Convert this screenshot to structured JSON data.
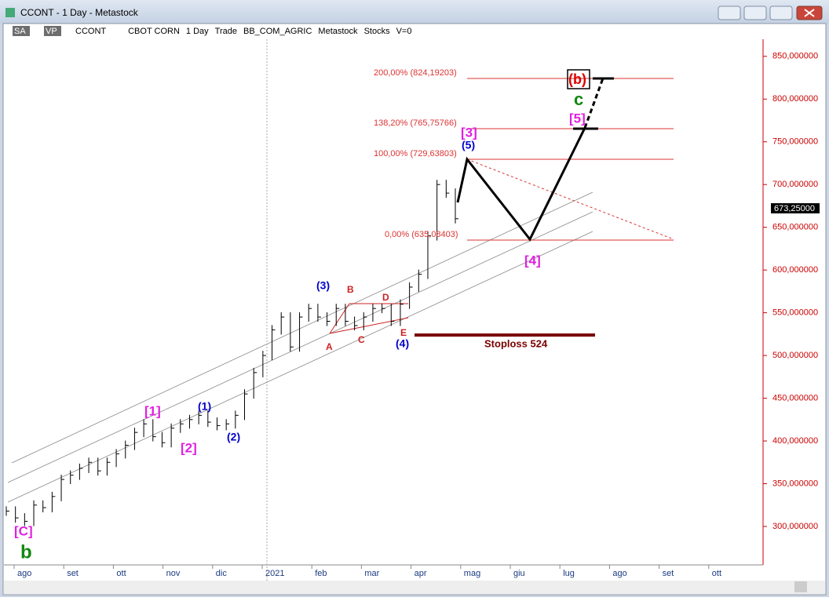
{
  "window": {
    "title": "CCONT - 1 Day - Metastock"
  },
  "toolbar": [
    "SA",
    "VP",
    "CCONT",
    "CBOT CORN",
    "1 Day",
    "Trade",
    "BB_COM_AGRIC",
    "Metastock",
    "Stocks",
    "V=0"
  ],
  "chart": {
    "ylim": [
      255,
      870
    ],
    "yticks": [
      {
        "value": 300,
        "label": "300,000000"
      },
      {
        "value": 350,
        "label": "350,000000"
      },
      {
        "value": 400,
        "label": "400,000000"
      },
      {
        "value": 450,
        "label": "450,000000"
      },
      {
        "value": 500,
        "label": "500,000000"
      },
      {
        "value": 550,
        "label": "550,000000"
      },
      {
        "value": 600,
        "label": "600,000000"
      },
      {
        "value": 650,
        "label": "650,000000"
      },
      {
        "value": 700,
        "label": "700,000000"
      },
      {
        "value": 750,
        "label": "750,000000"
      },
      {
        "value": 800,
        "label": "800,000000"
      },
      {
        "value": 850,
        "label": "850,000000"
      }
    ],
    "xlabels": [
      "ago",
      "set",
      "ott",
      "nov",
      "dic",
      "2021",
      "feb",
      "mar",
      "apr",
      "mag",
      "giu",
      "lug",
      "ago",
      "set",
      "ott"
    ],
    "price": [
      318,
      310,
      306,
      325,
      322,
      335,
      355,
      360,
      368,
      375,
      365,
      375,
      385,
      395,
      410,
      420,
      405,
      398,
      415,
      420,
      425,
      430,
      422,
      418,
      420,
      430,
      455,
      480,
      500,
      530,
      545,
      510,
      545,
      555,
      545,
      540,
      555,
      540,
      535,
      545,
      555,
      555,
      540,
      560,
      580,
      595,
      640,
      700,
      690,
      660
    ],
    "last_price": "673,25000",
    "fib_labels": [
      "200,00% (824,19203)",
      "138,20% (765,75766)",
      "100,00% (729,63803)",
      "0,00% (635,08403)"
    ],
    "waves": [
      "[C]",
      "b",
      "[1]",
      "[2]",
      "(1)",
      "(2)",
      "(3)",
      "(4)",
      "(5)",
      "A",
      "B",
      "C",
      "D",
      "E",
      "[3]",
      "[4]",
      "[5]",
      "(b)",
      "c"
    ],
    "stoploss": "Stoploss 524"
  }
}
